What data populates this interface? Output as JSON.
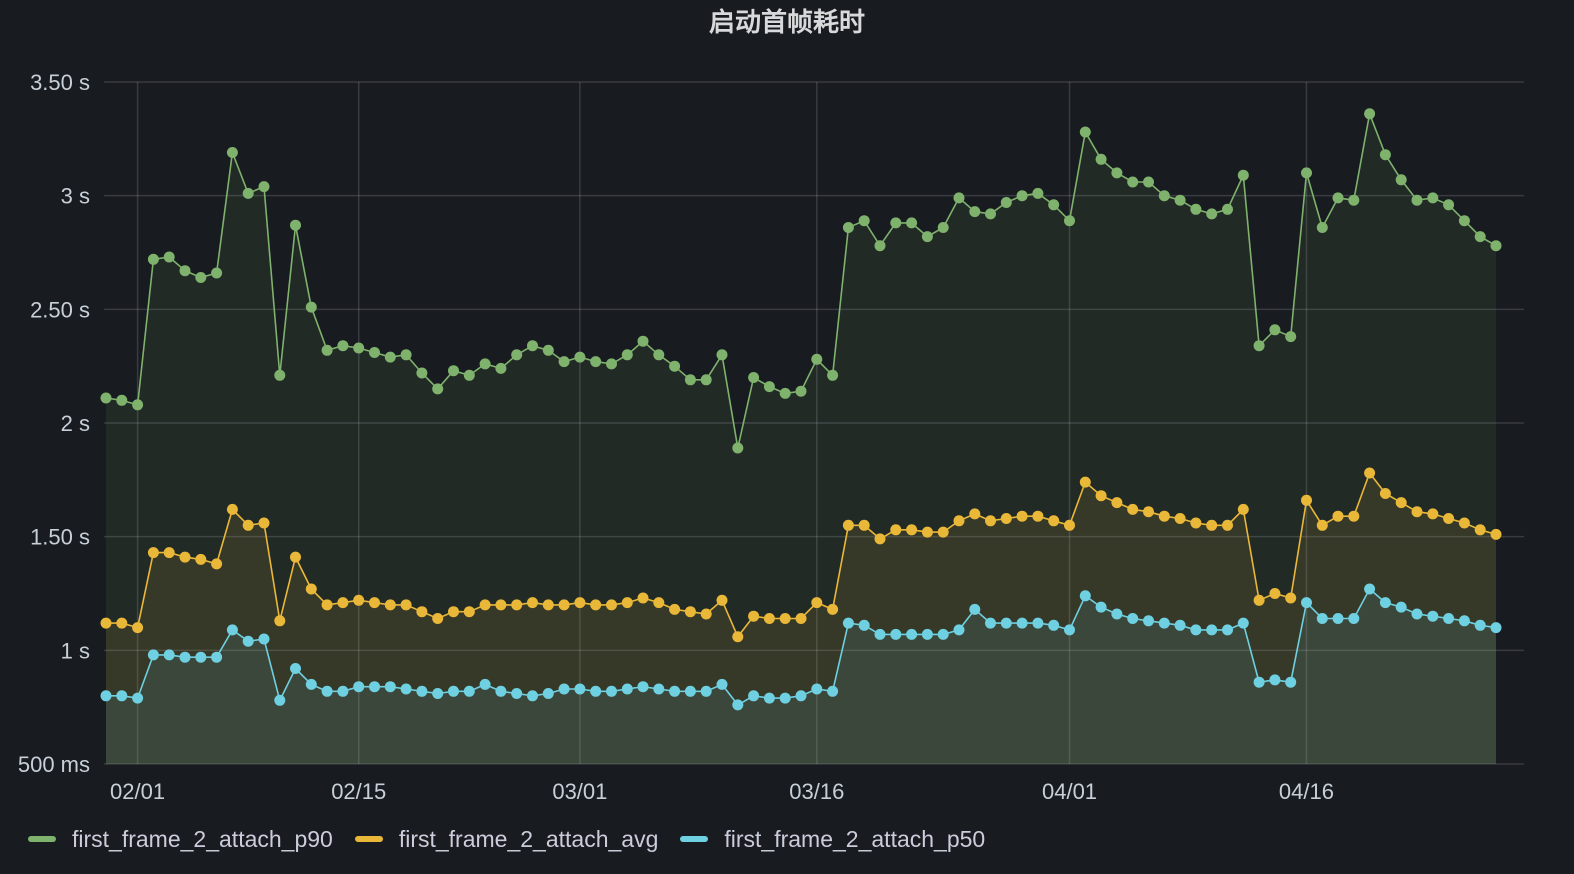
{
  "chart_data": {
    "type": "line",
    "title": "启动首帧耗时",
    "x_axis": {
      "ticks": [
        {
          "date": "2025-02-01",
          "label": "02/01"
        },
        {
          "date": "2025-02-15",
          "label": "02/15"
        },
        {
          "date": "2025-03-01",
          "label": "03/01"
        },
        {
          "date": "2025-03-16",
          "label": "03/16"
        },
        {
          "date": "2025-04-01",
          "label": "04/01"
        },
        {
          "date": "2025-04-16",
          "label": "04/16"
        }
      ],
      "range": [
        "2025-01-30",
        "2025-04-28"
      ]
    },
    "y_axis": {
      "ticks": [
        {
          "value": 0.5,
          "label": "500 ms"
        },
        {
          "value": 1.0,
          "label": "1 s"
        },
        {
          "value": 1.5,
          "label": "1.50 s"
        },
        {
          "value": 2.0,
          "label": "2 s"
        },
        {
          "value": 2.5,
          "label": "2.50 s"
        },
        {
          "value": 3.0,
          "label": "3 s"
        },
        {
          "value": 3.5,
          "label": "3.50 s"
        }
      ],
      "range": [
        0.5,
        3.5
      ],
      "unit": "s"
    },
    "grid": true,
    "legend_position": "bottom-left",
    "x": [
      "2025-01-30",
      "2025-01-31",
      "2025-02-01",
      "2025-02-02",
      "2025-02-03",
      "2025-02-04",
      "2025-02-05",
      "2025-02-06",
      "2025-02-07",
      "2025-02-08",
      "2025-02-09",
      "2025-02-10",
      "2025-02-11",
      "2025-02-12",
      "2025-02-13",
      "2025-02-14",
      "2025-02-15",
      "2025-02-16",
      "2025-02-17",
      "2025-02-18",
      "2025-02-19",
      "2025-02-20",
      "2025-02-21",
      "2025-02-22",
      "2025-02-23",
      "2025-02-24",
      "2025-02-25",
      "2025-02-26",
      "2025-02-27",
      "2025-02-28",
      "2025-03-01",
      "2025-03-02",
      "2025-03-03",
      "2025-03-04",
      "2025-03-05",
      "2025-03-06",
      "2025-03-07",
      "2025-03-08",
      "2025-03-09",
      "2025-03-10",
      "2025-03-11",
      "2025-03-12",
      "2025-03-13",
      "2025-03-14",
      "2025-03-15",
      "2025-03-16",
      "2025-03-17",
      "2025-03-18",
      "2025-03-19",
      "2025-03-20",
      "2025-03-21",
      "2025-03-22",
      "2025-03-23",
      "2025-03-24",
      "2025-03-25",
      "2025-03-26",
      "2025-03-27",
      "2025-03-28",
      "2025-03-29",
      "2025-03-30",
      "2025-03-31",
      "2025-04-01",
      "2025-04-02",
      "2025-04-03",
      "2025-04-04",
      "2025-04-05",
      "2025-04-06",
      "2025-04-07",
      "2025-04-08",
      "2025-04-09",
      "2025-04-10",
      "2025-04-11",
      "2025-04-12",
      "2025-04-13",
      "2025-04-14",
      "2025-04-15",
      "2025-04-16",
      "2025-04-17",
      "2025-04-18",
      "2025-04-19",
      "2025-04-20",
      "2025-04-21",
      "2025-04-22",
      "2025-04-23",
      "2025-04-24",
      "2025-04-25",
      "2025-04-26",
      "2025-04-27",
      "2025-04-28"
    ],
    "series": [
      {
        "name": "first_frame_2_attach_p90",
        "color": "#7eb26d",
        "values": [
          2.11,
          2.1,
          2.08,
          2.72,
          2.73,
          2.67,
          2.64,
          2.66,
          3.19,
          3.01,
          3.04,
          2.21,
          2.87,
          2.51,
          2.32,
          2.34,
          2.33,
          2.31,
          2.29,
          2.3,
          2.22,
          2.15,
          2.23,
          2.21,
          2.26,
          2.24,
          2.3,
          2.34,
          2.32,
          2.27,
          2.29,
          2.27,
          2.26,
          2.3,
          2.36,
          2.3,
          2.25,
          2.19,
          2.19,
          2.3,
          1.89,
          2.2,
          2.16,
          2.13,
          2.14,
          2.28,
          2.21,
          2.86,
          2.89,
          2.78,
          2.88,
          2.88,
          2.82,
          2.86,
          2.99,
          2.93,
          2.92,
          2.97,
          3.0,
          3.01,
          2.96,
          2.89,
          3.28,
          3.16,
          3.1,
          3.06,
          3.06,
          3.0,
          2.98,
          2.94,
          2.92,
          2.94,
          3.09,
          2.34,
          2.41,
          2.38,
          3.1,
          2.86,
          2.99,
          2.98,
          3.36,
          3.18,
          3.07,
          2.98,
          2.99,
          2.96,
          2.89,
          2.82,
          2.78
        ]
      },
      {
        "name": "first_frame_2_attach_avg",
        "color": "#eab839",
        "values": [
          1.12,
          1.12,
          1.1,
          1.43,
          1.43,
          1.41,
          1.4,
          1.38,
          1.62,
          1.55,
          1.56,
          1.13,
          1.41,
          1.27,
          1.2,
          1.21,
          1.22,
          1.21,
          1.2,
          1.2,
          1.17,
          1.14,
          1.17,
          1.17,
          1.2,
          1.2,
          1.2,
          1.21,
          1.2,
          1.2,
          1.21,
          1.2,
          1.2,
          1.21,
          1.23,
          1.21,
          1.18,
          1.17,
          1.16,
          1.22,
          1.06,
          1.15,
          1.14,
          1.14,
          1.14,
          1.21,
          1.18,
          1.55,
          1.55,
          1.49,
          1.53,
          1.53,
          1.52,
          1.52,
          1.57,
          1.6,
          1.57,
          1.58,
          1.59,
          1.59,
          1.57,
          1.55,
          1.74,
          1.68,
          1.65,
          1.62,
          1.61,
          1.59,
          1.58,
          1.56,
          1.55,
          1.55,
          1.62,
          1.22,
          1.25,
          1.23,
          1.66,
          1.55,
          1.59,
          1.59,
          1.78,
          1.69,
          1.65,
          1.61,
          1.6,
          1.58,
          1.56,
          1.53,
          1.51
        ]
      },
      {
        "name": "first_frame_2_attach_p50",
        "color": "#6ed0e0",
        "values": [
          0.8,
          0.8,
          0.79,
          0.98,
          0.98,
          0.97,
          0.97,
          0.97,
          1.09,
          1.04,
          1.05,
          0.78,
          0.92,
          0.85,
          0.82,
          0.82,
          0.84,
          0.84,
          0.84,
          0.83,
          0.82,
          0.81,
          0.82,
          0.82,
          0.85,
          0.82,
          0.81,
          0.8,
          0.81,
          0.83,
          0.83,
          0.82,
          0.82,
          0.83,
          0.84,
          0.83,
          0.82,
          0.82,
          0.82,
          0.85,
          0.76,
          0.8,
          0.79,
          0.79,
          0.8,
          0.83,
          0.82,
          1.12,
          1.11,
          1.07,
          1.07,
          1.07,
          1.07,
          1.07,
          1.09,
          1.18,
          1.12,
          1.12,
          1.12,
          1.12,
          1.11,
          1.09,
          1.24,
          1.19,
          1.16,
          1.14,
          1.13,
          1.12,
          1.11,
          1.09,
          1.09,
          1.09,
          1.12,
          0.86,
          0.87,
          0.86,
          1.21,
          1.14,
          1.14,
          1.14,
          1.27,
          1.21,
          1.19,
          1.16,
          1.15,
          1.14,
          1.13,
          1.11,
          1.1
        ]
      }
    ]
  }
}
